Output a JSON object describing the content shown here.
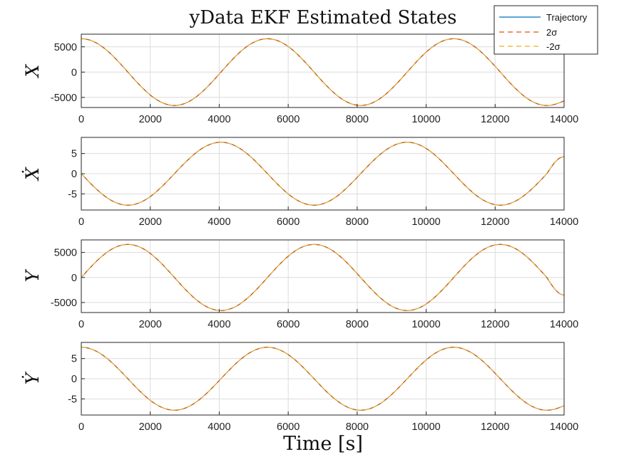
{
  "chart_data": {
    "type": "line",
    "title": "yData EKF Estimated States",
    "xlabel": "Time [s]",
    "legend": {
      "placement": "top-right",
      "entries": [
        {
          "label": "Trajectory",
          "color": "#0072BD",
          "style": "solid"
        },
        {
          "label": "2σ",
          "color": "#D95319",
          "style": "dashed"
        },
        {
          "label": "-2σ",
          "color": "#EDB120",
          "style": "dashed"
        }
      ]
    },
    "grid": true,
    "subplots": [
      {
        "ylabel": "X",
        "xlim": [
          0,
          14000
        ],
        "ylim": [
          -7000,
          7500
        ],
        "yticks": [
          -5000,
          0,
          5000
        ],
        "ytick_labels": [
          "-5000",
          "0",
          "5000"
        ],
        "xticks": [
          0,
          2000,
          4000,
          6000,
          8000,
          10000,
          12000,
          14000
        ],
        "xtick_labels": [
          "0",
          "2000",
          "4000",
          "6000",
          "8000",
          "10000",
          "12000",
          "14000"
        ],
        "x": [
          0,
          1350,
          2700,
          4050,
          5400,
          6750,
          8100,
          9450,
          10800,
          12150,
          13500,
          14000
        ],
        "series": [
          {
            "name": "Trajectory",
            "values": [
              6600,
              0,
              -6600,
              0,
              6600,
              0,
              -6600,
              0,
              6600,
              0,
              -6600,
              -5700
            ]
          },
          {
            "name": "2σ",
            "values": [
              6600,
              0,
              -6600,
              0,
              6600,
              0,
              -6600,
              0,
              6600,
              0,
              -6600,
              -5700
            ]
          },
          {
            "name": "-2σ",
            "values": [
              6600,
              0,
              -6600,
              0,
              6600,
              0,
              -6600,
              0,
              6600,
              0,
              -6600,
              -5700
            ]
          }
        ]
      },
      {
        "ylabel": "Ẋ",
        "xlim": [
          0,
          14000
        ],
        "ylim": [
          -9,
          9
        ],
        "yticks": [
          -5,
          0,
          5
        ],
        "ytick_labels": [
          "-5",
          "0",
          "5"
        ],
        "xticks": [
          0,
          2000,
          4000,
          6000,
          8000,
          10000,
          12000,
          14000
        ],
        "xtick_labels": [
          "0",
          "2000",
          "4000",
          "6000",
          "8000",
          "10000",
          "12000",
          "14000"
        ],
        "x": [
          0,
          1350,
          2700,
          4050,
          5400,
          6750,
          8100,
          9450,
          10800,
          12150,
          13500,
          14000
        ],
        "series": [
          {
            "name": "Trajectory",
            "values": [
              0,
              -7.8,
              0,
              7.8,
              0,
              -7.8,
              0,
              7.8,
              0,
              -7.8,
              0,
              4.2
            ]
          },
          {
            "name": "2σ",
            "values": [
              0,
              -7.8,
              0,
              7.8,
              0,
              -7.8,
              0,
              7.8,
              0,
              -7.8,
              0,
              4.2
            ]
          },
          {
            "name": "-2σ",
            "values": [
              0,
              -7.8,
              0,
              7.8,
              0,
              -7.8,
              0,
              7.8,
              0,
              -7.8,
              0,
              4.2
            ]
          }
        ]
      },
      {
        "ylabel": "Y",
        "xlim": [
          0,
          14000
        ],
        "ylim": [
          -7000,
          7500
        ],
        "yticks": [
          -5000,
          0,
          5000
        ],
        "ytick_labels": [
          "-5000",
          "0",
          "5000"
        ],
        "xticks": [
          0,
          2000,
          4000,
          6000,
          8000,
          10000,
          12000,
          14000
        ],
        "xtick_labels": [
          "0",
          "2000",
          "4000",
          "6000",
          "8000",
          "10000",
          "12000",
          "14000"
        ],
        "x": [
          0,
          1350,
          2700,
          4050,
          5400,
          6750,
          8100,
          9450,
          10800,
          12150,
          13500,
          14000
        ],
        "series": [
          {
            "name": "Trajectory",
            "values": [
              0,
              6600,
              0,
              -6600,
              0,
              6600,
              0,
              -6600,
              0,
              6600,
              0,
              -3500
            ]
          },
          {
            "name": "2σ",
            "values": [
              0,
              6600,
              0,
              -6600,
              0,
              6600,
              0,
              -6600,
              0,
              6600,
              0,
              -3500
            ]
          },
          {
            "name": "-2σ",
            "values": [
              0,
              6600,
              0,
              -6600,
              0,
              6600,
              0,
              -6600,
              0,
              6600,
              0,
              -3500
            ]
          }
        ]
      },
      {
        "ylabel": "Ẏ",
        "xlim": [
          0,
          14000
        ],
        "ylim": [
          -9,
          9
        ],
        "yticks": [
          -5,
          0,
          5
        ],
        "ytick_labels": [
          "-5",
          "0",
          "5"
        ],
        "xticks": [
          0,
          2000,
          4000,
          6000,
          8000,
          10000,
          12000,
          14000
        ],
        "xtick_labels": [
          "0",
          "2000",
          "4000",
          "6000",
          "8000",
          "10000",
          "12000",
          "14000"
        ],
        "x": [
          0,
          1350,
          2700,
          4050,
          5400,
          6750,
          8100,
          9450,
          10800,
          12150,
          13500,
          14000
        ],
        "series": [
          {
            "name": "Trajectory",
            "values": [
              7.8,
              0,
              -7.8,
              0,
              7.8,
              0,
              -7.8,
              0,
              7.8,
              0,
              -7.8,
              -6.7
            ]
          },
          {
            "name": "2σ",
            "values": [
              7.8,
              0,
              -7.8,
              0,
              7.8,
              0,
              -7.8,
              0,
              7.8,
              0,
              -7.8,
              -6.7
            ]
          },
          {
            "name": "-2σ",
            "values": [
              7.8,
              0,
              -7.8,
              0,
              7.8,
              0,
              -7.8,
              0,
              7.8,
              0,
              -7.8,
              -6.7
            ]
          }
        ]
      }
    ]
  }
}
